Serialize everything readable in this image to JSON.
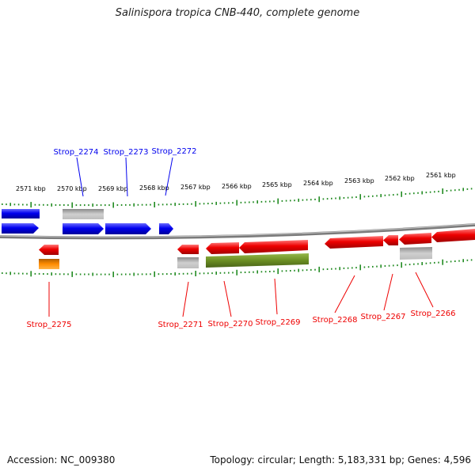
{
  "title": "Salinispora tropica CNB-440, complete genome",
  "accession_text": "Accession: NC_009380",
  "summary_text": "Topology: circular; Length: 5,183,331 bp; Genes: 4,596",
  "colors": {
    "strand_plus": "#0000ee",
    "strand_minus": "#ee0000",
    "gray": "#b0b0b0",
    "olive": "#6b8e23",
    "orange": "#ff8c00",
    "ticks": "#228b22",
    "backbone": "#808080"
  },
  "scale_labels": [
    {
      "text": "2571 kbp",
      "kbp": 2571
    },
    {
      "text": "2570 kbp",
      "kbp": 2570
    },
    {
      "text": "2569 kbp",
      "kbp": 2569
    },
    {
      "text": "2568 kbp",
      "kbp": 2568
    },
    {
      "text": "2567 kbp",
      "kbp": 2567
    },
    {
      "text": "2566 kbp",
      "kbp": 2566
    },
    {
      "text": "2565 kbp",
      "kbp": 2565
    },
    {
      "text": "2564 kbp",
      "kbp": 2564
    },
    {
      "text": "2563 kbp",
      "kbp": 2563
    },
    {
      "text": "2562 kbp",
      "kbp": 2562
    },
    {
      "text": "2561 kbp",
      "kbp": 2561
    }
  ],
  "gene_labels": [
    {
      "text": "Strop_2274",
      "strand": "plus"
    },
    {
      "text": "Strop_2273",
      "strand": "plus"
    },
    {
      "text": "Strop_2272",
      "strand": "plus"
    },
    {
      "text": "Strop_2275",
      "strand": "minus"
    },
    {
      "text": "Strop_2271",
      "strand": "minus"
    },
    {
      "text": "Strop_2270",
      "strand": "minus"
    },
    {
      "text": "Strop_2269",
      "strand": "minus"
    },
    {
      "text": "Strop_2268",
      "strand": "minus"
    },
    {
      "text": "Strop_2267",
      "strand": "minus"
    },
    {
      "text": "Strop_2266",
      "strand": "minus"
    }
  ]
}
